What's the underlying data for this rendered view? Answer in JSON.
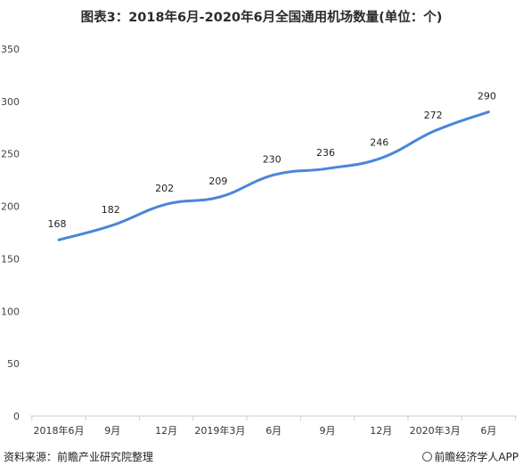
{
  "chart_data": {
    "type": "line",
    "title": "图表3：2018年6月-2020年6月全国通用机场数量(单位：个)",
    "categories": [
      "2018年6月",
      "9月",
      "12月",
      "2019年3月",
      "6月",
      "9月",
      "12月",
      "2020年3月",
      "6月"
    ],
    "series": [
      {
        "values": [
          168,
          182,
          202,
          209,
          230,
          236,
          246,
          272,
          290
        ]
      }
    ],
    "ylim": [
      0,
      350
    ],
    "yticks": [
      0,
      50,
      100,
      150,
      200,
      250,
      300,
      350
    ],
    "grid": false,
    "line_color": "#4a86d8"
  },
  "footer": {
    "source": "资料来源：前瞻产业研究院整理",
    "brand": "前瞻经济学人APP"
  }
}
